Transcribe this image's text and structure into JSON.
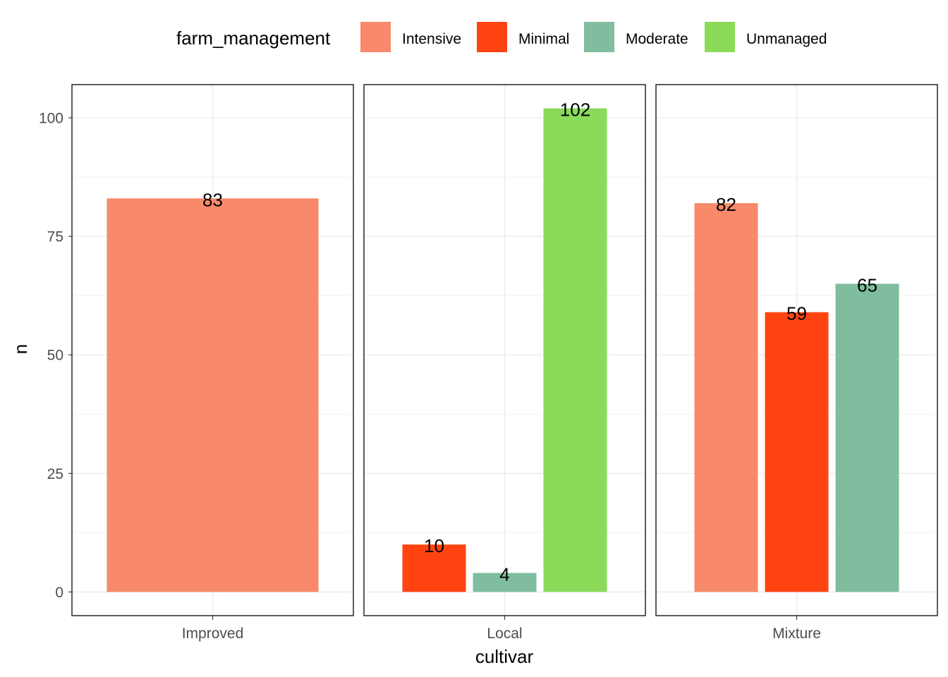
{
  "chart_data": {
    "type": "bar",
    "facet_variable": "cultivar",
    "xlabel": "cultivar",
    "ylabel": "n",
    "ylim": [
      -5,
      107
    ],
    "y_ticks": [
      0,
      25,
      50,
      75,
      100
    ],
    "grid": true,
    "legend": {
      "title": "farm_management",
      "position": "top",
      "entries": [
        {
          "name": "Intensive",
          "color": "#F8896A"
        },
        {
          "name": "Minimal",
          "color": "#FF4412"
        },
        {
          "name": "Moderate",
          "color": "#7FBD9E"
        },
        {
          "name": "Unmanaged",
          "color": "#8BDA5A"
        }
      ]
    },
    "facets": [
      {
        "cultivar": "Improved",
        "bars": [
          {
            "series": "Intensive",
            "value": 83
          }
        ]
      },
      {
        "cultivar": "Local",
        "bars": [
          {
            "series": "Minimal",
            "value": 10
          },
          {
            "series": "Moderate",
            "value": 4
          },
          {
            "series": "Unmanaged",
            "value": 102
          }
        ]
      },
      {
        "cultivar": "Mixture",
        "bars": [
          {
            "series": "Intensive",
            "value": 82
          },
          {
            "series": "Minimal",
            "value": 59
          },
          {
            "series": "Moderate",
            "value": 65
          }
        ]
      }
    ]
  }
}
